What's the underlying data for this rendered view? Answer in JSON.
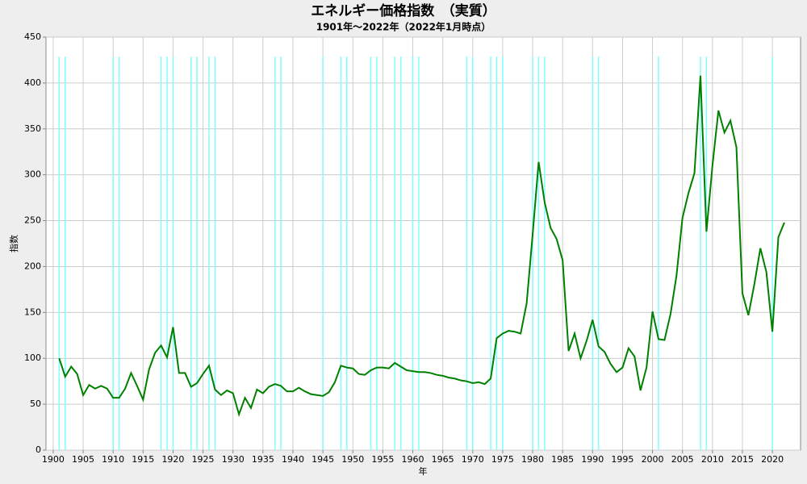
{
  "chart_data": {
    "type": "line",
    "title": "エネルギー価格指数　（実質）",
    "subtitle": "1901年～2022年（2022年1月時点）",
    "x_label": "年",
    "y_label": "指数",
    "x": [
      1901,
      1902,
      1903,
      1904,
      1905,
      1906,
      1907,
      1908,
      1909,
      1910,
      1911,
      1912,
      1913,
      1914,
      1915,
      1916,
      1917,
      1918,
      1919,
      1920,
      1921,
      1922,
      1923,
      1924,
      1925,
      1926,
      1927,
      1928,
      1929,
      1930,
      1931,
      1932,
      1933,
      1934,
      1935,
      1936,
      1937,
      1938,
      1939,
      1940,
      1941,
      1942,
      1943,
      1944,
      1945,
      1946,
      1947,
      1948,
      1949,
      1950,
      1951,
      1952,
      1953,
      1954,
      1955,
      1956,
      1957,
      1958,
      1959,
      1960,
      1961,
      1962,
      1963,
      1964,
      1965,
      1966,
      1967,
      1968,
      1969,
      1970,
      1971,
      1972,
      1973,
      1974,
      1975,
      1976,
      1977,
      1978,
      1979,
      1980,
      1981,
      1982,
      1983,
      1984,
      1985,
      1986,
      1987,
      1988,
      1989,
      1990,
      1991,
      1992,
      1993,
      1994,
      1995,
      1996,
      1997,
      1998,
      1999,
      2000,
      2001,
      2002,
      2003,
      2004,
      2005,
      2006,
      2007,
      2008,
      2009,
      2010,
      2011,
      2012,
      2013,
      2014,
      2015,
      2016,
      2017,
      2018,
      2019,
      2020,
      2021,
      2022
    ],
    "series": [
      {
        "color": "#008000",
        "values": [
          100,
          80,
          91,
          83,
          60,
          71,
          67,
          70,
          67,
          57,
          57,
          67,
          84,
          70,
          55,
          88,
          106,
          114,
          101,
          134,
          84,
          84,
          69,
          73,
          83,
          92,
          66,
          60,
          65,
          62,
          39,
          57,
          46,
          66,
          62,
          69,
          72,
          70,
          64,
          64,
          68,
          64,
          61,
          60,
          59,
          63,
          74,
          92,
          90,
          89,
          83,
          82,
          87,
          90,
          90,
          89,
          95,
          91,
          87,
          86,
          85,
          85,
          84,
          82,
          81,
          79,
          78,
          76,
          75,
          73,
          74,
          72,
          78,
          122,
          127,
          130,
          129,
          127,
          160,
          235,
          314,
          270,
          242,
          230,
          207,
          108,
          127,
          100,
          119,
          142,
          113,
          107,
          94,
          85,
          90,
          111,
          102,
          65,
          90,
          151,
          121,
          120,
          148,
          190,
          253,
          280,
          302,
          408,
          238,
          310,
          370,
          346,
          359,
          330,
          171,
          147,
          181,
          220,
          194,
          129,
          232,
          248
        ]
      }
    ],
    "highlight_x": [
      1901,
      1902,
      1910,
      1911,
      1918,
      1919,
      1920,
      1923,
      1924,
      1926,
      1927,
      1937,
      1938,
      1945,
      1948,
      1949,
      1953,
      1954,
      1957,
      1958,
      1960,
      1961,
      1969,
      1970,
      1973,
      1974,
      1975,
      1980,
      1981,
      1982,
      1990,
      1991,
      2001,
      2008,
      2009,
      2020
    ],
    "highlight_color": "#7fffff",
    "xlim": [
      1898.8,
      2024.7
    ],
    "ylim": [
      0,
      450
    ],
    "xticks": [
      1900,
      1905,
      1910,
      1915,
      1920,
      1925,
      1930,
      1935,
      1940,
      1945,
      1950,
      1955,
      1960,
      1965,
      1970,
      1975,
      1980,
      1985,
      1990,
      1995,
      2000,
      2005,
      2010,
      2015,
      2020
    ],
    "yticks": [
      0,
      50,
      100,
      150,
      200,
      250,
      300,
      350,
      400,
      450
    ],
    "grid": true
  }
}
